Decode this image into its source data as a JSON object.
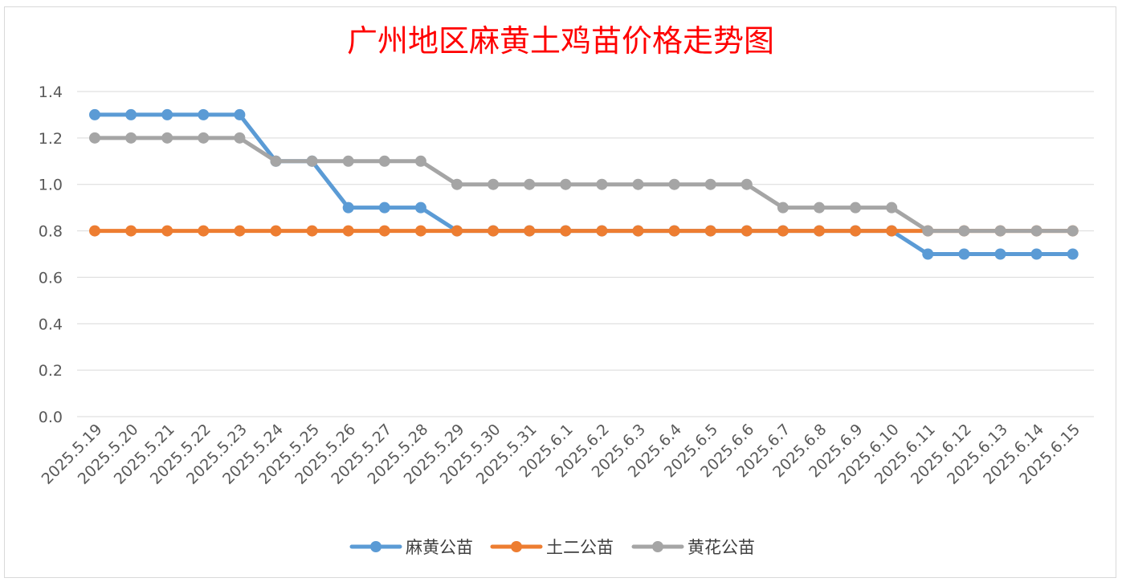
{
  "chart_data": {
    "type": "line",
    "title": "广州地区麻黄土鸡苗价格走势图",
    "xlabel": "",
    "ylabel": "",
    "ylim": [
      0,
      1.4
    ],
    "yticks": [
      "0.0",
      "0.2",
      "0.4",
      "0.6",
      "0.8",
      "1.0",
      "1.2",
      "1.4"
    ],
    "grid": true,
    "legend_position": "bottom",
    "categories": [
      "2025.5.19",
      "2025.5.20",
      "2025.5.21",
      "2025.5.22",
      "2025.5.23",
      "2025.5.24",
      "2025.5.25",
      "2025.5.26",
      "2025.5.27",
      "2025.5.28",
      "2025.5.29",
      "2025.5.30",
      "2025.5.31",
      "2025.6.1",
      "2025.6.2",
      "2025.6.3",
      "2025.6.4",
      "2025.6.5",
      "2025.6.6",
      "2025.6.7",
      "2025.6.8",
      "2025.6.9",
      "2025.6.10",
      "2025.6.11",
      "2025.6.12",
      "2025.6.13",
      "2025.6.14",
      "2025.6.15"
    ],
    "series": [
      {
        "name": "麻黄公苗",
        "color": "#5b9bd5",
        "values": [
          1.3,
          1.3,
          1.3,
          1.3,
          1.3,
          1.1,
          1.1,
          0.9,
          0.9,
          0.9,
          0.8,
          0.8,
          0.8,
          0.8,
          0.8,
          0.8,
          0.8,
          0.8,
          0.8,
          0.8,
          0.8,
          0.8,
          0.8,
          0.7,
          0.7,
          0.7,
          0.7,
          0.7
        ]
      },
      {
        "name": "土二公苗",
        "color": "#ed7d31",
        "values": [
          0.8,
          0.8,
          0.8,
          0.8,
          0.8,
          0.8,
          0.8,
          0.8,
          0.8,
          0.8,
          0.8,
          0.8,
          0.8,
          0.8,
          0.8,
          0.8,
          0.8,
          0.8,
          0.8,
          0.8,
          0.8,
          0.8,
          0.8,
          0.8,
          0.8,
          0.8,
          0.8,
          0.8
        ]
      },
      {
        "name": "黄花公苗",
        "color": "#a5a5a5",
        "values": [
          1.2,
          1.2,
          1.2,
          1.2,
          1.2,
          1.1,
          1.1,
          1.1,
          1.1,
          1.1,
          1.0,
          1.0,
          1.0,
          1.0,
          1.0,
          1.0,
          1.0,
          1.0,
          1.0,
          0.9,
          0.9,
          0.9,
          0.9,
          0.8,
          0.8,
          0.8,
          0.8,
          0.8
        ]
      }
    ]
  }
}
